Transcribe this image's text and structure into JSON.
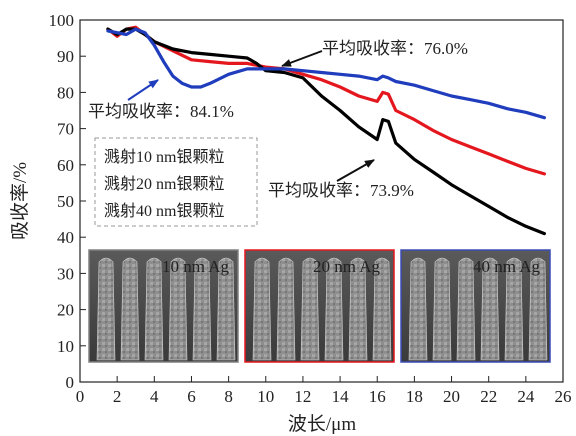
{
  "chart_data": {
    "type": "line",
    "xlabel": "波长/μm",
    "ylabel": "吸收率/%",
    "xlim": [
      0,
      26
    ],
    "ylim": [
      0,
      100
    ],
    "xticks": [
      "0",
      "2",
      "4",
      "6",
      "8",
      "10",
      "12",
      "14",
      "16",
      "18",
      "20",
      "22",
      "24",
      "26"
    ],
    "yticks": [
      "0",
      "10",
      "20",
      "30",
      "40",
      "50",
      "60",
      "70",
      "80",
      "90",
      "100"
    ],
    "grid": false,
    "legend_position": "middle-left",
    "series": [
      {
        "name": "溅射10 nm银颗粒",
        "color": "#000000",
        "x": [
          1.5,
          2,
          2.5,
          3,
          3.5,
          4,
          5,
          6,
          7,
          8,
          9,
          9.5,
          10,
          11,
          12,
          13,
          14,
          15,
          16,
          16.3,
          16.6,
          17,
          18,
          19,
          20,
          21,
          22,
          23,
          24,
          25
        ],
        "y": [
          97.5,
          96,
          97.5,
          97.5,
          96,
          94,
          92,
          91,
          90.5,
          90,
          89.5,
          88,
          86,
          85.5,
          84,
          79,
          75,
          70.5,
          67,
          72.5,
          72,
          66,
          61.5,
          58,
          54.5,
          51.5,
          48.5,
          45.5,
          43,
          41
        ]
      },
      {
        "name": "溅射20 nm银颗粒",
        "color": "#e5171e",
        "x": [
          1.5,
          2,
          2.5,
          3,
          3.5,
          4,
          5,
          6,
          7,
          8,
          9,
          10,
          11,
          12,
          13,
          14,
          15,
          16,
          16.3,
          16.6,
          17,
          18,
          19,
          20,
          21,
          22,
          23,
          24,
          25
        ],
        "y": [
          97.5,
          95.5,
          97.5,
          98,
          96,
          94,
          91.5,
          89,
          88.5,
          88,
          88,
          87,
          86.5,
          85,
          83.5,
          81.5,
          79,
          77.5,
          80,
          79.5,
          75,
          72.5,
          69.5,
          67,
          65,
          63,
          61,
          59,
          57.5
        ]
      },
      {
        "name": "溅射40 nm银颗粒",
        "color": "#1f3dbd",
        "x": [
          1.5,
          2,
          2.5,
          3,
          3.5,
          4,
          4.5,
          5,
          5.5,
          6,
          6.5,
          7,
          8,
          9,
          10,
          11,
          12,
          13,
          14,
          15,
          16,
          16.3,
          16.6,
          17,
          18,
          19,
          20,
          21,
          22,
          23,
          24,
          25
        ],
        "y": [
          97,
          96.5,
          96,
          97.5,
          96.5,
          93,
          88.5,
          84.5,
          82.5,
          81.5,
          81.5,
          82.5,
          85,
          86.5,
          86.5,
          86.5,
          86,
          85.5,
          85,
          84.5,
          83.5,
          84.5,
          84,
          83,
          82,
          80.5,
          79,
          78,
          77,
          75.5,
          74.5,
          73
        ]
      }
    ],
    "annotations": [
      {
        "text": "平均吸收率：76.0%",
        "series": "溅射20 nm银颗粒"
      },
      {
        "text": "平均吸收率：84.1%",
        "series": "溅射40 nm银颗粒"
      },
      {
        "text": "平均吸收率：73.9%",
        "series": "溅射10 nm银颗粒"
      }
    ],
    "insets": [
      {
        "label": "10 nm Ag",
        "border": "#808080"
      },
      {
        "label": "20 nm Ag",
        "border": "#e5171e"
      },
      {
        "label": "40 nm Ag",
        "border": "#3a4bb5"
      }
    ]
  }
}
